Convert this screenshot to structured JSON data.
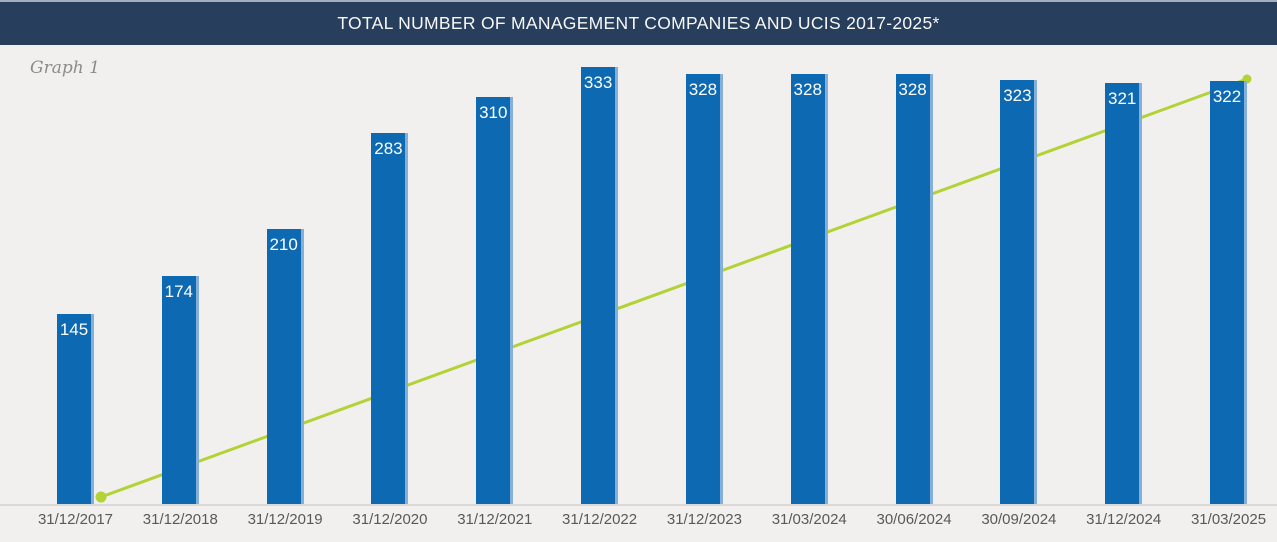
{
  "header": {
    "title": "TOTAL NUMBER OF MANAGEMENT COMPANIES AND UCIS 2017-2025*"
  },
  "graph_label": "Graph 1",
  "colors": {
    "title_bar_bg": "#273e5c",
    "title_text": "#f7f7f7",
    "background": "#f1f0ee",
    "bar": "#0c69b2",
    "bar_edge_highlight": "#85aed8",
    "value_label": "#ffffff",
    "trend_line": "#b2d235",
    "axis_line": "#dad9d6",
    "tick_label": "#595959",
    "graph_label_text": "#8b8b8b"
  },
  "chart_data": {
    "type": "bar",
    "title": "TOTAL NUMBER OF MANAGEMENT COMPANIES AND UCIS 2017-2025*",
    "categories": [
      "31/12/2017",
      "31/12/2018",
      "31/12/2019",
      "31/12/2020",
      "31/12/2021",
      "31/12/2022",
      "31/12/2023",
      "31/03/2024",
      "30/06/2024",
      "30/09/2024",
      "31/12/2024",
      "31/03/2025"
    ],
    "values": [
      145,
      174,
      210,
      283,
      310,
      333,
      328,
      328,
      328,
      323,
      321,
      322
    ],
    "xlabel": "",
    "ylabel": "",
    "ylim": [
      0,
      340
    ],
    "grid": false,
    "legend": "none",
    "data_labels": "values shown in white inside top of each bar",
    "overlay_line": {
      "type": "line",
      "color": "#b2d235",
      "description": "straight rising trend line drawn behind the bars, from a round marker at the baseline beside the first bar (31/12/2017) up to a round marker at the top of the last bar (31/03/2025); no legend or value labels shown"
    }
  }
}
